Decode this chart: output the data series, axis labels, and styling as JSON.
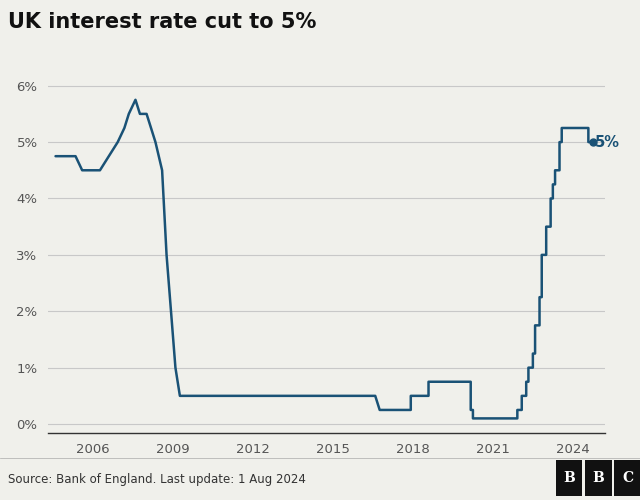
{
  "title": "UK interest rate cut to 5%",
  "source": "Source: Bank of England. Last update: 1 Aug 2024",
  "line_color": "#1a5276",
  "bg_color": "#f0f0eb",
  "plot_bg_color": "#f0f0eb",
  "tick_color": "#555555",
  "annotation_label": "5%",
  "dot_y": 5.0,
  "xlim": [
    2004.3,
    2025.2
  ],
  "ylim": [
    -0.15,
    6.5
  ],
  "yticks": [
    0,
    1,
    2,
    3,
    4,
    5,
    6
  ],
  "ytick_labels": [
    "0%",
    "1%",
    "2%",
    "3%",
    "4%",
    "5%",
    "6%"
  ],
  "xticks": [
    2006,
    2009,
    2012,
    2015,
    2018,
    2021,
    2024
  ],
  "rate_data": [
    [
      2004.583,
      4.75
    ],
    [
      2005.333,
      4.75
    ],
    [
      2005.583,
      4.5
    ],
    [
      2006.25,
      4.5
    ],
    [
      2006.583,
      4.75
    ],
    [
      2006.917,
      5.0
    ],
    [
      2007.167,
      5.25
    ],
    [
      2007.333,
      5.5
    ],
    [
      2007.583,
      5.75
    ],
    [
      2007.75,
      5.5
    ],
    [
      2008.0,
      5.5
    ],
    [
      2008.167,
      5.25
    ],
    [
      2008.333,
      5.0
    ],
    [
      2008.583,
      4.5
    ],
    [
      2008.75,
      3.0
    ],
    [
      2008.917,
      2.0
    ],
    [
      2009.0,
      1.5
    ],
    [
      2009.083,
      1.0
    ],
    [
      2009.25,
      0.5
    ],
    [
      2016.583,
      0.5
    ],
    [
      2016.75,
      0.25
    ],
    [
      2017.917,
      0.25
    ],
    [
      2017.917,
      0.5
    ],
    [
      2018.583,
      0.5
    ],
    [
      2018.583,
      0.75
    ],
    [
      2019.583,
      0.75
    ],
    [
      2020.167,
      0.75
    ],
    [
      2020.167,
      0.25
    ],
    [
      2020.25,
      0.25
    ],
    [
      2020.25,
      0.1
    ],
    [
      2021.833,
      0.1
    ],
    [
      2021.917,
      0.1
    ],
    [
      2021.917,
      0.25
    ],
    [
      2022.083,
      0.25
    ],
    [
      2022.083,
      0.5
    ],
    [
      2022.25,
      0.5
    ],
    [
      2022.25,
      0.75
    ],
    [
      2022.333,
      0.75
    ],
    [
      2022.333,
      1.0
    ],
    [
      2022.5,
      1.0
    ],
    [
      2022.5,
      1.25
    ],
    [
      2022.583,
      1.25
    ],
    [
      2022.583,
      1.75
    ],
    [
      2022.75,
      1.75
    ],
    [
      2022.75,
      2.25
    ],
    [
      2022.833,
      2.25
    ],
    [
      2022.833,
      3.0
    ],
    [
      2023.0,
      3.0
    ],
    [
      2023.0,
      3.5
    ],
    [
      2023.167,
      3.5
    ],
    [
      2023.167,
      4.0
    ],
    [
      2023.25,
      4.0
    ],
    [
      2023.25,
      4.25
    ],
    [
      2023.333,
      4.25
    ],
    [
      2023.333,
      4.5
    ],
    [
      2023.5,
      4.5
    ],
    [
      2023.5,
      5.0
    ],
    [
      2023.583,
      5.0
    ],
    [
      2023.583,
      5.25
    ],
    [
      2024.583,
      5.25
    ],
    [
      2024.583,
      5.0
    ],
    [
      2024.75,
      5.0
    ]
  ]
}
